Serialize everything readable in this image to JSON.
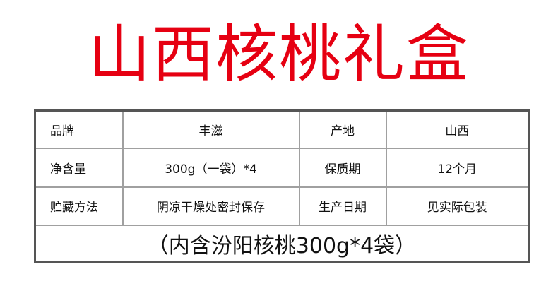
{
  "title": "山西核桃礼盒",
  "rows": [
    [
      "品牌",
      "丰滋",
      "产地",
      "山西"
    ],
    [
      "净含量",
      "300g（一袋）*4",
      "保质期",
      "12个月"
    ],
    [
      "贮藏方法",
      "阴凉干燥处密封保存",
      "生产日期",
      "见实际包装"
    ]
  ],
  "note": "（内含汾阳核桃300g*4袋）",
  "colors": {
    "title": "#e60012",
    "border": "#555555"
  }
}
